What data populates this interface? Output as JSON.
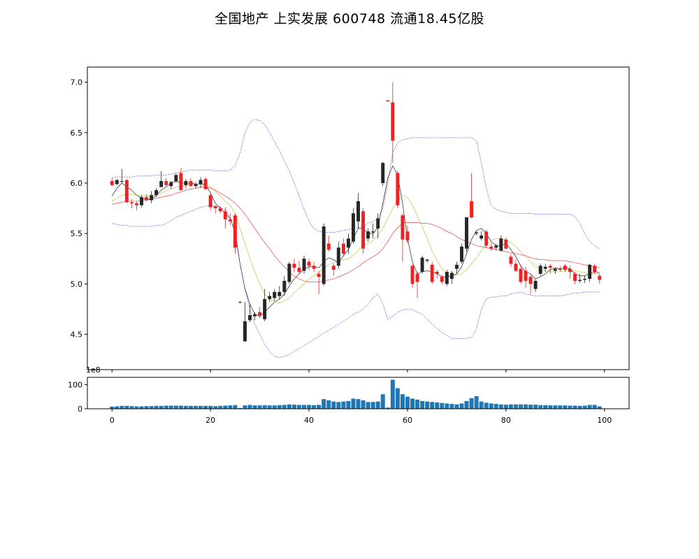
{
  "chart_data": {
    "title": "全国地产 上实发展 600748 流通18.45亿股",
    "type": "candlestick",
    "x": [
      0,
      1,
      2,
      3,
      4,
      5,
      6,
      7,
      8,
      9,
      10,
      11,
      12,
      13,
      14,
      15,
      16,
      17,
      18,
      19,
      20,
      21,
      22,
      23,
      24,
      25,
      26,
      27,
      28,
      29,
      30,
      31,
      32,
      33,
      34,
      35,
      36,
      37,
      38,
      39,
      40,
      41,
      42,
      43,
      44,
      45,
      46,
      47,
      48,
      49,
      50,
      51,
      52,
      53,
      54,
      55,
      56,
      57,
      58,
      59,
      60,
      61,
      62,
      63,
      64,
      65,
      66,
      67,
      68,
      69,
      70,
      71,
      72,
      73,
      74,
      75,
      76,
      77,
      78,
      79,
      80,
      81,
      82,
      83,
      84,
      85,
      86,
      87,
      88,
      89,
      90,
      91,
      92,
      93,
      94,
      95,
      96,
      97,
      98,
      99
    ],
    "ohlc": [
      [
        6.02,
        6.05,
        5.97,
        5.98
      ],
      [
        5.99,
        6.04,
        5.98,
        6.03
      ],
      [
        6.02,
        6.14,
        6.0,
        6.02
      ],
      [
        6.03,
        6.04,
        5.8,
        5.81
      ],
      [
        5.81,
        5.84,
        5.75,
        5.8
      ],
      [
        5.8,
        5.82,
        5.73,
        5.78
      ],
      [
        5.78,
        5.88,
        5.76,
        5.86
      ],
      [
        5.86,
        5.89,
        5.82,
        5.83
      ],
      [
        5.83,
        5.92,
        5.8,
        5.88
      ],
      [
        5.88,
        5.95,
        5.86,
        5.93
      ],
      [
        5.96,
        6.12,
        5.96,
        6.02
      ],
      [
        6.02,
        6.05,
        5.97,
        5.98
      ],
      [
        5.97,
        6.02,
        5.94,
        6.01
      ],
      [
        6.02,
        6.1,
        6.0,
        6.08
      ],
      [
        6.1,
        6.15,
        5.92,
        5.93
      ],
      [
        5.98,
        6.04,
        5.95,
        6.02
      ],
      [
        6.02,
        6.05,
        5.96,
        5.97
      ],
      [
        5.97,
        6.01,
        5.95,
        5.99
      ],
      [
        5.99,
        6.06,
        5.95,
        6.03
      ],
      [
        6.04,
        6.06,
        5.93,
        5.94
      ],
      [
        5.88,
        5.9,
        5.73,
        5.76
      ],
      [
        5.77,
        5.78,
        5.7,
        5.75
      ],
      [
        5.75,
        5.77,
        5.7,
        5.72
      ],
      [
        5.72,
        5.76,
        5.55,
        5.64
      ],
      [
        5.64,
        5.7,
        5.58,
        5.62
      ],
      [
        5.68,
        5.7,
        5.3,
        5.36
      ],
      [
        4.82,
        4.83,
        4.81,
        4.82
      ],
      [
        4.43,
        4.82,
        4.43,
        4.63
      ],
      [
        4.64,
        4.8,
        4.62,
        4.69
      ],
      [
        4.68,
        4.72,
        4.64,
        4.7
      ],
      [
        4.72,
        4.77,
        4.66,
        4.68
      ],
      [
        4.65,
        4.95,
        4.63,
        4.85
      ],
      [
        4.85,
        4.92,
        4.82,
        4.88
      ],
      [
        4.86,
        4.95,
        4.83,
        4.92
      ],
      [
        4.88,
        4.98,
        4.85,
        4.92
      ],
      [
        4.92,
        5.08,
        4.88,
        5.03
      ],
      [
        5.02,
        5.22,
        5.0,
        5.2
      ],
      [
        5.2,
        5.25,
        5.12,
        5.16
      ],
      [
        5.16,
        5.23,
        5.1,
        5.12
      ],
      [
        5.13,
        5.28,
        5.1,
        5.25
      ],
      [
        5.22,
        5.25,
        5.14,
        5.18
      ],
      [
        5.18,
        5.22,
        5.12,
        5.15
      ],
      [
        5.1,
        5.13,
        4.9,
        5.07
      ],
      [
        5.0,
        5.6,
        4.98,
        5.57
      ],
      [
        5.4,
        5.48,
        5.32,
        5.34
      ],
      [
        5.18,
        5.2,
        5.08,
        5.14
      ],
      [
        5.18,
        5.42,
        5.15,
        5.36
      ],
      [
        5.4,
        5.45,
        5.28,
        5.3
      ],
      [
        5.36,
        5.5,
        5.3,
        5.45
      ],
      [
        5.42,
        5.75,
        5.4,
        5.7
      ],
      [
        5.62,
        5.9,
        5.55,
        5.82
      ],
      [
        5.72,
        5.75,
        5.3,
        5.35
      ],
      [
        5.45,
        5.55,
        5.42,
        5.52
      ],
      [
        5.51,
        5.6,
        5.45,
        5.52
      ],
      [
        5.55,
        5.7,
        5.45,
        5.65
      ],
      [
        6.0,
        6.21,
        5.97,
        6.2
      ],
      [
        6.82,
        6.82,
        6.81,
        6.81
      ],
      [
        6.8,
        7.0,
        6.2,
        6.42
      ],
      [
        6.1,
        6.12,
        5.75,
        5.78
      ],
      [
        5.68,
        5.7,
        5.22,
        5.44
      ],
      [
        5.52,
        5.58,
        5.4,
        5.43
      ],
      [
        5.18,
        5.2,
        4.96,
        5.0
      ],
      [
        5.1,
        5.12,
        4.86,
        5.02
      ],
      [
        5.12,
        5.28,
        5.1,
        5.26
      ],
      [
        5.23,
        5.25,
        5.21,
        5.24
      ],
      [
        5.19,
        5.22,
        5.0,
        5.02
      ],
      [
        5.12,
        5.14,
        5.05,
        5.1
      ],
      [
        5.07,
        5.09,
        5.0,
        5.02
      ],
      [
        5.0,
        5.14,
        4.98,
        5.12
      ],
      [
        5.05,
        5.13,
        5.0,
        5.11
      ],
      [
        5.15,
        5.22,
        5.1,
        5.19
      ],
      [
        5.22,
        5.4,
        5.2,
        5.37
      ],
      [
        5.35,
        5.65,
        5.32,
        5.66
      ],
      [
        5.82,
        6.1,
        5.65,
        5.66
      ],
      [
        5.5,
        5.52,
        5.48,
        5.51
      ],
      [
        5.45,
        5.52,
        5.43,
        5.48
      ],
      [
        5.52,
        5.54,
        5.36,
        5.38
      ],
      [
        5.37,
        5.4,
        5.33,
        5.35
      ],
      [
        5.36,
        5.4,
        5.33,
        5.38
      ],
      [
        5.33,
        5.48,
        5.32,
        5.45
      ],
      [
        5.44,
        5.46,
        5.34,
        5.35
      ],
      [
        5.27,
        5.3,
        5.17,
        5.2
      ],
      [
        5.2,
        5.24,
        5.12,
        5.13
      ],
      [
        5.15,
        5.18,
        5.0,
        5.02
      ],
      [
        5.13,
        5.17,
        4.96,
        5.03
      ],
      [
        5.07,
        5.09,
        4.9,
        5.0
      ],
      [
        4.95,
        5.05,
        4.92,
        5.03
      ],
      [
        5.1,
        5.2,
        5.08,
        5.18
      ],
      [
        5.15,
        5.2,
        5.12,
        5.17
      ],
      [
        5.18,
        5.2,
        5.1,
        5.16
      ],
      [
        5.13,
        5.16,
        5.1,
        5.15
      ],
      [
        5.15,
        5.18,
        5.12,
        5.14
      ],
      [
        5.18,
        5.2,
        5.12,
        5.14
      ],
      [
        5.15,
        5.18,
        5.05,
        5.12
      ],
      [
        5.1,
        5.12,
        5.0,
        5.03
      ],
      [
        5.03,
        5.1,
        5.01,
        5.04
      ],
      [
        5.04,
        5.08,
        5.01,
        5.05
      ],
      [
        5.05,
        5.2,
        5.02,
        5.19
      ],
      [
        5.18,
        5.2,
        5.1,
        5.12
      ],
      [
        5.08,
        5.1,
        5.0,
        5.04
      ]
    ],
    "up_color": "#262626",
    "down_color": "#ee2222",
    "overlays": [
      {
        "color": "#000000",
        "width": 0.6,
        "dash": "",
        "values": [
          5.87,
          5.95,
          6.0,
          5.96,
          5.93,
          5.88,
          5.85,
          5.84,
          5.84,
          5.88,
          5.93,
          5.96,
          6.0,
          6.02,
          6.0,
          6.0,
          6.0,
          5.99,
          5.99,
          5.99,
          5.9,
          5.8,
          5.75,
          5.7,
          5.65,
          5.52,
          5.2,
          4.95,
          4.8,
          4.7,
          4.68,
          4.72,
          4.77,
          4.82,
          4.85,
          4.9,
          4.98,
          5.05,
          5.1,
          5.15,
          5.17,
          5.17,
          5.16,
          5.22,
          5.26,
          5.24,
          5.21,
          5.28,
          5.34,
          5.45,
          5.55,
          5.55,
          5.5,
          5.5,
          5.56,
          5.8,
          6.05,
          6.17,
          6.08,
          5.8,
          5.45,
          5.22,
          5.1,
          5.12,
          5.13,
          5.12,
          5.1,
          5.07,
          5.07,
          5.08,
          5.1,
          5.17,
          5.3,
          5.44,
          5.53,
          5.55,
          5.5,
          5.42,
          5.38,
          5.38,
          5.4,
          5.34,
          5.27,
          5.18,
          5.12,
          5.1,
          5.05,
          5.07,
          5.1,
          5.14,
          5.16,
          5.15,
          5.16,
          5.15,
          5.1,
          5.08,
          5.08,
          5.1,
          5.12,
          5.11
        ]
      },
      {
        "color": "#bbbb22",
        "width": 0.6,
        "dash": "",
        "values": [
          5.82,
          5.85,
          5.88,
          5.89,
          5.89,
          5.88,
          5.87,
          5.87,
          5.88,
          5.89,
          5.9,
          5.92,
          5.94,
          5.96,
          5.97,
          5.98,
          5.99,
          5.99,
          5.99,
          5.98,
          5.96,
          5.92,
          5.87,
          5.82,
          5.78,
          5.7,
          5.55,
          5.4,
          5.25,
          5.12,
          5.0,
          4.9,
          4.85,
          4.82,
          4.81,
          4.83,
          4.86,
          4.91,
          4.96,
          5.0,
          5.05,
          5.08,
          5.11,
          5.16,
          5.19,
          5.21,
          5.22,
          5.24,
          5.25,
          5.28,
          5.33,
          5.38,
          5.4,
          5.43,
          5.48,
          5.55,
          5.65,
          5.75,
          5.82,
          5.88,
          5.86,
          5.78,
          5.68,
          5.57,
          5.45,
          5.33,
          5.23,
          5.15,
          5.1,
          5.08,
          5.09,
          5.1,
          5.14,
          5.2,
          5.26,
          5.33,
          5.39,
          5.43,
          5.45,
          5.45,
          5.44,
          5.41,
          5.37,
          5.32,
          5.27,
          5.22,
          5.17,
          5.14,
          5.13,
          5.12,
          5.12,
          5.12,
          5.13,
          5.14,
          5.13,
          5.12,
          5.11,
          5.1,
          5.1,
          5.1
        ]
      },
      {
        "color": "#ee2222",
        "width": 0.6,
        "dash": "",
        "values": [
          5.79,
          5.8,
          5.81,
          5.82,
          5.82,
          5.82,
          5.83,
          5.83,
          5.84,
          5.85,
          5.86,
          5.87,
          5.88,
          5.9,
          5.91,
          5.93,
          5.94,
          5.95,
          5.96,
          5.96,
          5.95,
          5.93,
          5.9,
          5.87,
          5.84,
          5.8,
          5.75,
          5.69,
          5.62,
          5.55,
          5.48,
          5.41,
          5.35,
          5.28,
          5.22,
          5.17,
          5.12,
          5.08,
          5.05,
          5.03,
          5.02,
          5.02,
          5.02,
          5.03,
          5.04,
          5.05,
          5.07,
          5.09,
          5.11,
          5.14,
          5.17,
          5.21,
          5.24,
          5.27,
          5.3,
          5.35,
          5.42,
          5.5,
          5.56,
          5.6,
          5.61,
          5.61,
          5.61,
          5.6,
          5.6,
          5.59,
          5.57,
          5.55,
          5.52,
          5.5,
          5.47,
          5.44,
          5.42,
          5.4,
          5.38,
          5.37,
          5.36,
          5.35,
          5.34,
          5.33,
          5.32,
          5.31,
          5.3,
          5.29,
          5.28,
          5.26,
          5.25,
          5.24,
          5.24,
          5.23,
          5.23,
          5.23,
          5.23,
          5.22,
          5.21,
          5.2,
          5.19,
          5.18,
          5.17,
          5.16
        ]
      },
      {
        "color": "#0000ee",
        "width": 0.5,
        "dash": "2,1.5",
        "values": [
          6.05,
          6.06,
          6.06,
          6.06,
          6.06,
          6.07,
          6.07,
          6.07,
          6.07,
          6.08,
          6.08,
          6.08,
          6.09,
          6.1,
          6.11,
          6.12,
          6.13,
          6.13,
          6.13,
          6.13,
          6.13,
          6.12,
          6.12,
          6.12,
          6.13,
          6.17,
          6.3,
          6.5,
          6.6,
          6.63,
          6.62,
          6.58,
          6.5,
          6.41,
          6.32,
          6.22,
          6.12,
          6.0,
          5.87,
          5.74,
          5.62,
          5.55,
          5.52,
          5.51,
          5.51,
          5.51,
          5.52,
          5.53,
          5.54,
          5.55,
          5.56,
          5.57,
          5.6,
          5.62,
          5.65,
          5.75,
          6.0,
          6.3,
          6.4,
          6.43,
          6.44,
          6.45,
          6.45,
          6.45,
          6.45,
          6.45,
          6.45,
          6.45,
          6.45,
          6.45,
          6.45,
          6.45,
          6.45,
          6.45,
          6.42,
          6.2,
          5.95,
          5.78,
          5.74,
          5.72,
          5.71,
          5.7,
          5.7,
          5.7,
          5.7,
          5.7,
          5.69,
          5.69,
          5.69,
          5.69,
          5.69,
          5.69,
          5.69,
          5.69,
          5.67,
          5.6,
          5.5,
          5.42,
          5.38,
          5.35
        ]
      },
      {
        "color": "#0000ee",
        "width": 0.5,
        "dash": "2,1.5",
        "values": [
          5.6,
          5.59,
          5.58,
          5.58,
          5.57,
          5.57,
          5.57,
          5.57,
          5.57,
          5.58,
          5.58,
          5.6,
          5.63,
          5.66,
          5.68,
          5.7,
          5.72,
          5.74,
          5.76,
          5.77,
          5.78,
          5.77,
          5.76,
          5.73,
          5.66,
          5.5,
          5.2,
          4.95,
          4.75,
          4.6,
          4.5,
          4.4,
          4.33,
          4.28,
          4.27,
          4.28,
          4.3,
          4.33,
          4.36,
          4.39,
          4.42,
          4.45,
          4.48,
          4.51,
          4.54,
          4.57,
          4.6,
          4.63,
          4.66,
          4.7,
          4.72,
          4.75,
          4.8,
          4.86,
          4.9,
          4.8,
          4.65,
          4.68,
          4.72,
          4.74,
          4.75,
          4.74,
          4.72,
          4.7,
          4.65,
          4.6,
          4.56,
          4.52,
          4.49,
          4.46,
          4.46,
          4.46,
          4.46,
          4.47,
          4.55,
          4.75,
          4.85,
          4.87,
          4.87,
          4.88,
          4.88,
          4.9,
          4.91,
          4.92,
          4.9,
          4.89,
          4.88,
          4.88,
          4.88,
          4.88,
          4.88,
          4.88,
          4.89,
          4.9,
          4.91,
          4.91,
          4.92,
          4.92,
          4.92,
          4.92
        ]
      }
    ],
    "volume": [
      9,
      10,
      12,
      12,
      11,
      10,
      10,
      11,
      11,
      12,
      12,
      13,
      13,
      13,
      13,
      12,
      12,
      12,
      12,
      12,
      12,
      11,
      12,
      13,
      14,
      15,
      3,
      14,
      16,
      14,
      14,
      15,
      14,
      14,
      15,
      16,
      18,
      17,
      16,
      16,
      16,
      15,
      16,
      40,
      35,
      30,
      28,
      30,
      32,
      42,
      40,
      35,
      28,
      28,
      30,
      60,
      5,
      120,
      85,
      60,
      50,
      42,
      38,
      32,
      30,
      28,
      26,
      24,
      22,
      20,
      18,
      22,
      32,
      44,
      52,
      30,
      25,
      22,
      20,
      18,
      17,
      18,
      18,
      18,
      18,
      17,
      17,
      15,
      15,
      14,
      14,
      14,
      14,
      13,
      13,
      12,
      13,
      16,
      16,
      10
    ],
    "volume_exponent_label": "1e8",
    "ylim": [
      4.15,
      7.15
    ],
    "yticks": [
      "7.0",
      "6.5",
      "6.0",
      "5.5",
      "5.0",
      "4.5"
    ],
    "xlim": [
      -5,
      105
    ],
    "xticks": [
      "0",
      "20",
      "40",
      "60",
      "80",
      "100"
    ],
    "volume_ylim": [
      0,
      130
    ],
    "volume_yticks": [
      "100",
      "0"
    ]
  }
}
